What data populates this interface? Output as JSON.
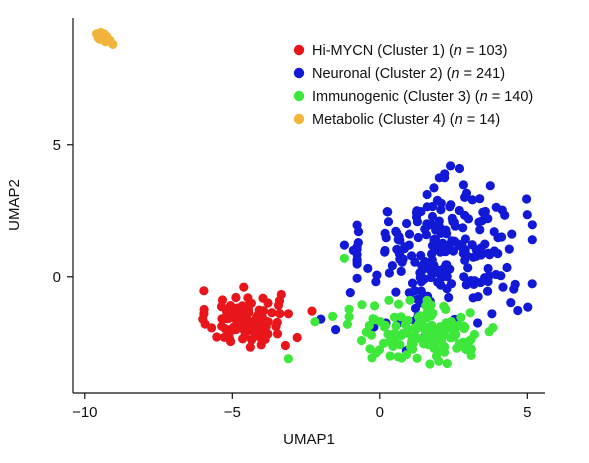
{
  "chart_data": {
    "type": "scatter",
    "title": "",
    "xlabel": "UMAP1",
    "ylabel": "UMAP2",
    "xlim": [
      -10.4,
      5.6
    ],
    "ylim": [
      -4.4,
      9.8
    ],
    "xticks": [
      -10,
      -5,
      0,
      5
    ],
    "xtick_labels": [
      "−10",
      "−5",
      "0",
      "5"
    ],
    "yticks": [
      0,
      5
    ],
    "ytick_labels": [
      "0",
      "5"
    ],
    "grid": false,
    "legend_position": "top-right",
    "series": [
      {
        "name": "Hi-MYCN (Cluster 1) (n = 103)",
        "legend": {
          "prefix": "Hi-MYCN (Cluster 1) (",
          "italic": "n",
          "suffix": " = 103)"
        },
        "color": "#e8161b",
        "count": 103,
        "center": [
          -4.6,
          -1.6
        ],
        "spread": [
          0.62,
          0.55
        ],
        "extra_points": [
          [
            -3.1,
            -1.4
          ],
          [
            -3.4,
            -0.9
          ],
          [
            -2.8,
            -2.3
          ],
          [
            -2.3,
            -1.3
          ],
          [
            -3.2,
            -2.6
          ],
          [
            -6.0,
            -1.6
          ]
        ]
      },
      {
        "name": "Neuronal (Cluster 2) (n = 241)",
        "legend": {
          "prefix": "Neuronal (Cluster 2) (",
          "italic": "n",
          "suffix": " = 241)"
        },
        "color": "#1219d6",
        "count": 241,
        "center": [
          2.2,
          1.0
        ],
        "spread": [
          1.35,
          1.25
        ],
        "extra_points": [
          [
            2.4,
            4.2
          ],
          [
            2.7,
            4.1
          ],
          [
            2.2,
            3.9
          ],
          [
            -1.2,
            1.2
          ],
          [
            -0.9,
            1.0
          ],
          [
            -1.5,
            -2.0
          ],
          [
            -2.0,
            -1.6
          ],
          [
            -1.0,
            -0.6
          ],
          [
            -0.2,
            -1.9
          ],
          [
            1.5,
            -2.3
          ],
          [
            3.8,
            -1.4
          ],
          [
            0.9,
            -2.8
          ]
        ]
      },
      {
        "name": "Immunogenic (Cluster 3) (n = 140)",
        "legend": {
          "prefix": "Immunogenic (Cluster 3) (",
          "italic": "n",
          "suffix": " = 140)"
        },
        "color": "#3ee83a",
        "count": 140,
        "center": [
          1.6,
          -2.1
        ],
        "spread": [
          1.2,
          0.55
        ],
        "extra_points": [
          [
            -2.2,
            -1.7
          ],
          [
            -1.6,
            -1.5
          ],
          [
            -1.1,
            -1.8
          ],
          [
            -3.1,
            -3.1
          ],
          [
            -1.2,
            0.7
          ],
          [
            2.0,
            -3.2
          ],
          [
            1.7,
            -3.3
          ]
        ]
      },
      {
        "name": "Metabolic (Cluster 4) (n = 14)",
        "legend": {
          "prefix": "Metabolic (Cluster 4) (",
          "italic": "n",
          "suffix": " = 14)"
        },
        "color": "#f2b43a",
        "count": 14,
        "points": [
          [
            -9.6,
            9.2
          ],
          [
            -9.5,
            9.0
          ],
          [
            -9.4,
            9.15
          ],
          [
            -9.3,
            8.95
          ],
          [
            -9.45,
            9.25
          ],
          [
            -9.25,
            9.1
          ],
          [
            -9.55,
            9.05
          ],
          [
            -9.35,
            9.2
          ],
          [
            -9.2,
            9.0
          ],
          [
            -9.15,
            8.95
          ],
          [
            -9.4,
            9.05
          ],
          [
            -9.3,
            8.9
          ],
          [
            -9.5,
            9.15
          ],
          [
            -9.05,
            8.8
          ]
        ]
      }
    ]
  }
}
